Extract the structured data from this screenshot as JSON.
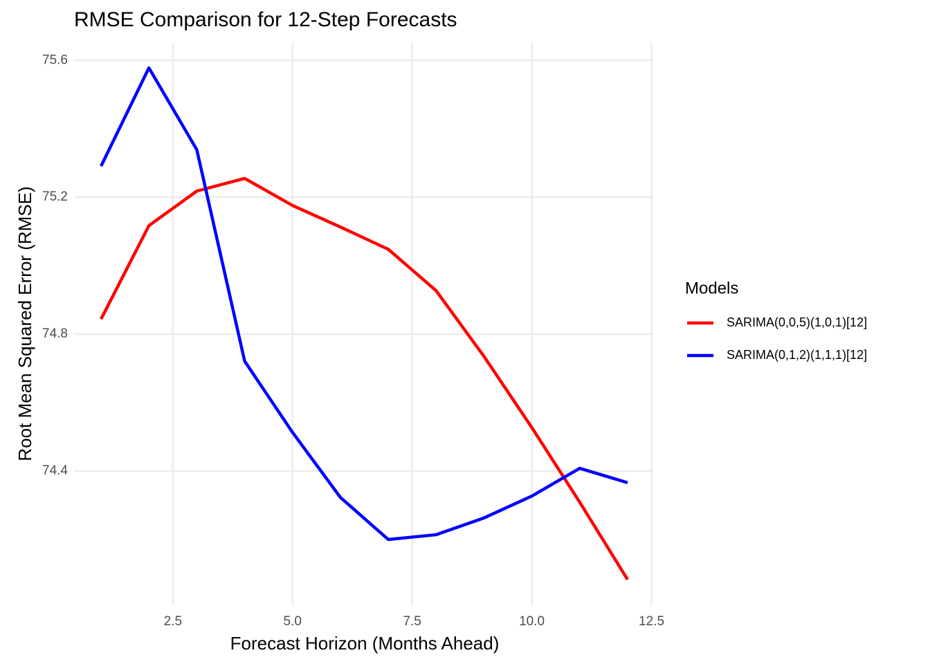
{
  "chart_data": {
    "type": "line",
    "title": "RMSE Comparison for 12-Step Forecasts",
    "x_label": "Forecast Horizon (Months Ahead)",
    "y_label": "Root Mean Squared Error (RMSE)",
    "legend_title": "Models",
    "legend_position": "right",
    "grid": true,
    "x": [
      1,
      2,
      3,
      4,
      5,
      6,
      7,
      8,
      9,
      10,
      11,
      12
    ],
    "series": [
      {
        "name": "SARIMA(0,0,5)(1,0,1)[12]",
        "color": "#ff0000",
        "values": [
          74.844,
          75.117,
          75.218,
          75.255,
          75.176,
          75.113,
          75.048,
          74.927,
          74.735,
          74.527,
          74.309,
          74.083
        ]
      },
      {
        "name": "SARIMA(0,1,2)(1,1,1)[12]",
        "color": "#0000ff",
        "values": [
          75.291,
          75.578,
          75.339,
          74.721,
          74.513,
          74.323,
          74.2,
          74.214,
          74.263,
          74.327,
          74.408,
          74.366
        ]
      }
    ],
    "xlim": [
      0.45,
      12.55
    ],
    "xticks": [
      2.5,
      {
        "value": 5,
        "label": "5.0"
      },
      7.5,
      {
        "value": 10,
        "label": "10.0"
      },
      12.5
    ],
    "ylim": [
      74.008,
      75.651
    ],
    "yticks": [
      74.4,
      74.8,
      75.2,
      75.6
    ]
  }
}
